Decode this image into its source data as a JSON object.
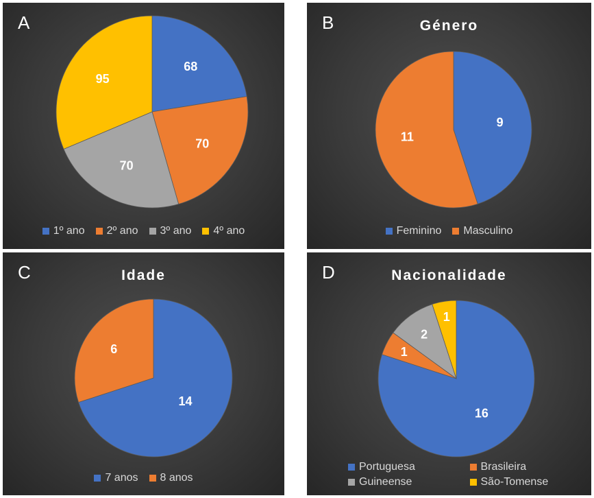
{
  "colors": {
    "blue": "#4472c4",
    "orange": "#ed7d31",
    "gray": "#a5a5a5",
    "yellow": "#ffc000"
  },
  "chart_data": [
    {
      "type": "pie",
      "panel": "A",
      "title": "",
      "categories": [
        "1º ano",
        "2º ano",
        "3º ano",
        "4º ano"
      ],
      "values": [
        68,
        70,
        70,
        95
      ],
      "colors": [
        "#4472c4",
        "#ed7d31",
        "#a5a5a5",
        "#ffc000"
      ]
    },
    {
      "type": "pie",
      "panel": "B",
      "title": "Género",
      "categories": [
        "Feminino",
        "Masculino"
      ],
      "values": [
        9,
        11
      ],
      "colors": [
        "#4472c4",
        "#ed7d31"
      ]
    },
    {
      "type": "pie",
      "panel": "C",
      "title": "Idade",
      "categories": [
        "7 anos",
        "8 anos"
      ],
      "values": [
        14,
        6
      ],
      "colors": [
        "#4472c4",
        "#ed7d31"
      ]
    },
    {
      "type": "pie",
      "panel": "D",
      "title": "Nacionalidade",
      "categories": [
        "Portuguesa",
        "Brasileira",
        "Guineense",
        "São-Tomense"
      ],
      "values": [
        16,
        1,
        2,
        1
      ],
      "colors": [
        "#4472c4",
        "#ed7d31",
        "#a5a5a5",
        "#ffc000"
      ]
    }
  ]
}
